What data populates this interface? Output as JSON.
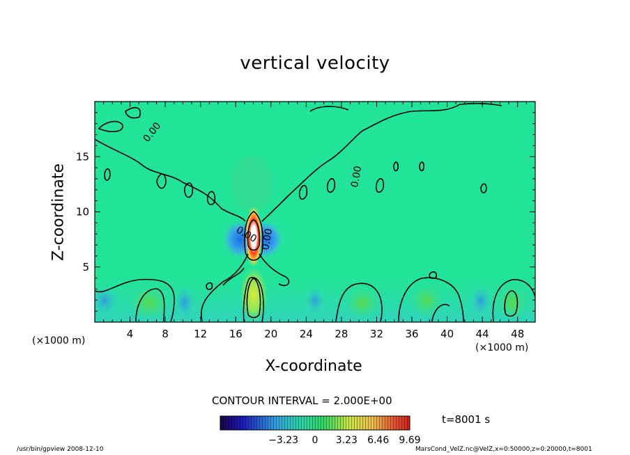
{
  "chart_data": {
    "type": "heatmap",
    "title": "vertical velocity",
    "xlabel": "X-coordinate",
    "ylabel": "Z-coordinate",
    "x_unit": "(×1000 m)",
    "xlim": [
      0,
      50
    ],
    "ylim": [
      0,
      20
    ],
    "x_ticks": [
      4,
      8,
      12,
      16,
      20,
      24,
      28,
      32,
      36,
      40,
      44,
      48
    ],
    "y_ticks": [
      5,
      10,
      15
    ],
    "contour_interval": "CONTOUR INTERVAL = 2.000E+00",
    "contour_labels": [
      "0.00",
      "0.00",
      "0.00",
      "0.00"
    ],
    "colorbar": {
      "range": [
        -9.69,
        9.69
      ],
      "tick_labels": [
        "−3.23",
        "0",
        "3.23",
        "6.46",
        "9.69"
      ],
      "tick_values": [
        -3.23,
        0,
        3.23,
        6.46,
        9.69
      ]
    },
    "time": "t=8001 s",
    "features": [
      {
        "kind": "updraft",
        "x": 18.2,
        "z": 7.5,
        "value": 9.69
      },
      {
        "kind": "updraft",
        "x": 18.2,
        "z": 2.5,
        "value": 4.0
      },
      {
        "kind": "downdraft",
        "x": 16.8,
        "z": 7.5,
        "value": -4.0
      },
      {
        "kind": "downdraft",
        "x": 19.6,
        "z": 7.5,
        "value": -4.0
      }
    ]
  },
  "footer": {
    "left": "/usr/bin/gpview   2008-12-10",
    "right": "MarsCond_VelZ.nc@VelZ,x=0:50000,z=0:20000,t=8001"
  },
  "colors": {
    "background_field": "#22e39a",
    "updraft_core": "#ffffff",
    "downdraft": "#1f7fe0"
  }
}
